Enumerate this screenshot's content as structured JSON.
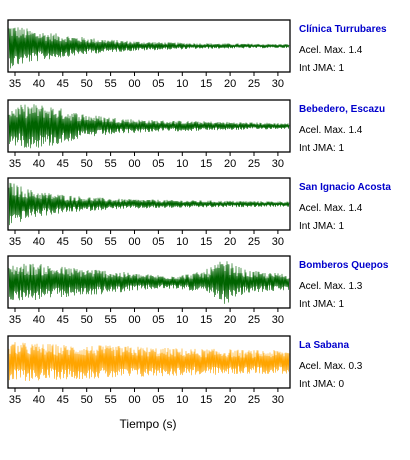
{
  "chart_data": {
    "type": "line",
    "xlabel": "Tiempo (s)",
    "x_tick_labels": [
      "35",
      "40",
      "45",
      "50",
      "55",
      "00",
      "05",
      "10",
      "15",
      "20",
      "25",
      "30"
    ],
    "colors": {
      "trace": "#006400",
      "highlight_trace": "#ffa500",
      "station_name": "#0000cc"
    },
    "panels": [
      {
        "station": "Clínica Turrubares",
        "acel_text": "Acel. Max. 1.4",
        "jma_text": "Int JMA: 1",
        "acel_max": 1.4,
        "int_jma": 1,
        "color": "#006400",
        "envelope": [
          0.95,
          0.7,
          0.55,
          0.42,
          0.32,
          0.25,
          0.2,
          0.17,
          0.14,
          0.12,
          0.11,
          0.1,
          0.09,
          0.08
        ]
      },
      {
        "station": "Bebedero, Escazu",
        "acel_text": "Acel. Max. 1.4",
        "jma_text": "Int JMA: 1",
        "acel_max": 1.4,
        "int_jma": 1,
        "color": "#006400",
        "envelope": [
          0.8,
          0.95,
          0.85,
          0.6,
          0.45,
          0.35,
          0.28,
          0.24,
          0.22,
          0.2,
          0.18,
          0.16,
          0.14,
          0.12
        ]
      },
      {
        "station": "San Ignacio Acosta",
        "acel_text": "Acel. Max. 1.4",
        "jma_text": "Int JMA: 1",
        "acel_max": 1.4,
        "int_jma": 1,
        "color": "#006400",
        "envelope": [
          0.95,
          0.6,
          0.45,
          0.35,
          0.28,
          0.22,
          0.2,
          0.18,
          0.16,
          0.15,
          0.14,
          0.13,
          0.12,
          0.12
        ]
      },
      {
        "station": "Bomberos Quepos",
        "acel_text": "Acel. Max. 1.3",
        "jma_text": "Int JMA: 1",
        "acel_max": 1.3,
        "int_jma": 1,
        "color": "#006400",
        "envelope": [
          0.75,
          0.8,
          0.7,
          0.6,
          0.55,
          0.45,
          0.35,
          0.3,
          0.3,
          0.45,
          0.95,
          0.5,
          0.4,
          0.35
        ]
      },
      {
        "station": "La Sabana",
        "acel_text": "Acel. Max. 0.3",
        "jma_text": "Int JMA: 0",
        "acel_max": 0.3,
        "int_jma": 0,
        "color": "#ffa500",
        "envelope": [
          0.85,
          0.8,
          0.75,
          0.72,
          0.7,
          0.68,
          0.66,
          0.6,
          0.58,
          0.55,
          0.55,
          0.5,
          0.5,
          0.5
        ]
      }
    ]
  }
}
